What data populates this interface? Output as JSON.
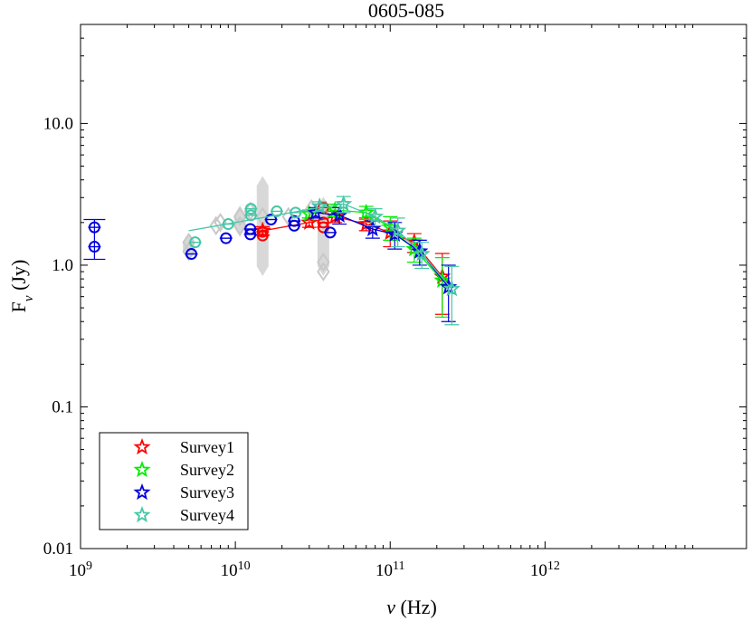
{
  "chart_data": {
    "type": "scatter",
    "title": "0605-085",
    "xlabel": "ν (Hz)",
    "ylabel": "F_ν (Jy)",
    "xscale": "log",
    "yscale": "log",
    "xlim": [
      1000000000,
      20000000000000
    ],
    "ylim": [
      0.01,
      50
    ],
    "x_ticks": [
      {
        "value": 1000000000,
        "mantissa": "10",
        "exp": "9"
      },
      {
        "value": 10000000000,
        "mantissa": "10",
        "exp": "10"
      },
      {
        "value": 100000000000,
        "mantissa": "10",
        "exp": "11"
      },
      {
        "value": 1000000000000,
        "mantissa": "10",
        "exp": "12"
      }
    ],
    "y_ticks": [
      {
        "value": 0.01,
        "label": "0.01"
      },
      {
        "value": 0.1,
        "label": "0.1"
      },
      {
        "value": 1,
        "label": "1.0"
      },
      {
        "value": 10,
        "label": "10.0"
      }
    ],
    "legend_position": "bottom-left",
    "grey_history": {
      "color": "#c8c8c8",
      "points": [
        {
          "x": 5000000000.0,
          "y": 1.25
        },
        {
          "x": 5000000000.0,
          "y": 1.45
        },
        {
          "x": 7500000000.0,
          "y": 1.9
        },
        {
          "x": 8000000000.0,
          "y": 2.0
        },
        {
          "x": 10700000000.0,
          "y": 2.2
        },
        {
          "x": 10700000000.0,
          "y": 1.9
        },
        {
          "x": 12500000000.0,
          "y": 2.4
        },
        {
          "x": 15000000000.0,
          "y": 2.2
        },
        {
          "x": 22000000000.0,
          "y": 2.2
        },
        {
          "x": 31000000000.0,
          "y": 2.5
        },
        {
          "x": 37000000000.0,
          "y": 2.3
        },
        {
          "x": 37000000000.0,
          "y": 1.05
        },
        {
          "x": 37000000000.0,
          "y": 0.9
        }
      ],
      "bars": [
        {
          "x": 5000000000.0,
          "lo": 1.1,
          "hi": 1.65
        },
        {
          "x": 10700000000.0,
          "lo": 1.6,
          "hi": 2.6
        },
        {
          "x": 15000000000.0,
          "lo": 0.85,
          "hi": 4.2
        },
        {
          "x": 37000000000.0,
          "lo": 0.85,
          "hi": 3.0
        }
      ]
    },
    "series": [
      {
        "name": "Survey1",
        "color": "#ff0000",
        "circles": [
          {
            "x": 15000000000.0,
            "y": 1.62
          },
          {
            "x": 15000000000.0,
            "y": 1.72
          },
          {
            "x": 37000000000.0,
            "y": 2.55
          },
          {
            "x": 37000000000.0,
            "y": 2.0
          },
          {
            "x": 37000000000.0,
            "y": 1.85
          }
        ],
        "stars": [
          {
            "x": 15000000000.0,
            "y": 1.75,
            "err": 0.12
          },
          {
            "x": 30000000000.0,
            "y": 2.0,
            "err": 0.15
          },
          {
            "x": 44000000000.0,
            "y": 2.2,
            "err": 0.2
          },
          {
            "x": 70000000000.0,
            "y": 1.95,
            "err": 0.2
          },
          {
            "x": 100000000000.0,
            "y": 1.7,
            "err": 0.35
          },
          {
            "x": 143000000000.0,
            "y": 1.45,
            "err": 0.22
          },
          {
            "x": 217000000000.0,
            "y": 0.83,
            "err": 0.38
          }
        ]
      },
      {
        "name": "Survey2",
        "color": "#00ee00",
        "circles": [],
        "stars": [
          {
            "x": 30000000000.0,
            "y": 2.3,
            "err": 0.15
          },
          {
            "x": 44000000000.0,
            "y": 2.45,
            "err": 0.25
          },
          {
            "x": 70000000000.0,
            "y": 2.35,
            "err": 0.25
          },
          {
            "x": 100000000000.0,
            "y": 1.85,
            "err": 0.35
          },
          {
            "x": 143000000000.0,
            "y": 1.3,
            "err": 0.25
          },
          {
            "x": 217000000000.0,
            "y": 0.78,
            "err": 0.35
          }
        ]
      },
      {
        "name": "Survey3",
        "color": "#0000dd",
        "circles": [
          {
            "x": 1230000000.0,
            "y": 1.85
          },
          {
            "x": 1230000000.0,
            "y": 1.35
          },
          {
            "x": 5200000000.0,
            "y": 1.2
          },
          {
            "x": 8700000000.0,
            "y": 1.55
          },
          {
            "x": 12500000000.0,
            "y": 1.65
          },
          {
            "x": 12500000000.0,
            "y": 1.8
          },
          {
            "x": 17000000000.0,
            "y": 2.1
          },
          {
            "x": 24000000000.0,
            "y": 1.9
          },
          {
            "x": 24000000000.0,
            "y": 2.05
          },
          {
            "x": 41000000000.0,
            "y": 1.7
          }
        ],
        "circle_errs": [
          {
            "x": 1230000000.0,
            "lo": 1.1,
            "hi": 2.1
          }
        ],
        "stars": [
          {
            "x": 33000000000.0,
            "y": 2.35,
            "err": 0.2
          },
          {
            "x": 47000000000.0,
            "y": 2.25,
            "err": 0.3
          },
          {
            "x": 77000000000.0,
            "y": 1.8,
            "err": 0.25
          },
          {
            "x": 107000000000.0,
            "y": 1.65,
            "err": 0.35
          },
          {
            "x": 155000000000.0,
            "y": 1.25,
            "err": 0.25
          },
          {
            "x": 238000000000.0,
            "y": 0.7,
            "err": 0.3
          }
        ]
      },
      {
        "name": "Survey4",
        "color": "#45c7a6",
        "circles": [
          {
            "x": 5500000000.0,
            "y": 1.45
          },
          {
            "x": 9000000000.0,
            "y": 1.95
          },
          {
            "x": 12600000000.0,
            "y": 2.25
          },
          {
            "x": 12600000000.0,
            "y": 2.5
          },
          {
            "x": 18500000000.0,
            "y": 2.4
          },
          {
            "x": 24500000000.0,
            "y": 2.35
          }
        ],
        "stars": [
          {
            "x": 35000000000.0,
            "y": 2.6,
            "err": 0.2
          },
          {
            "x": 50000000000.0,
            "y": 2.7,
            "err": 0.35
          },
          {
            "x": 80000000000.0,
            "y": 2.2,
            "err": 0.3
          },
          {
            "x": 112000000000.0,
            "y": 1.75,
            "err": 0.4
          },
          {
            "x": 160000000000.0,
            "y": 1.2,
            "err": 0.25
          },
          {
            "x": 250000000000.0,
            "y": 0.68,
            "err": 0.3
          }
        ],
        "line": [
          {
            "x": 5000000000.0,
            "y": 1.75
          },
          {
            "x": 35000000000.0,
            "y": 2.55
          },
          {
            "x": 50000000000.0,
            "y": 2.7
          },
          {
            "x": 80000000000.0,
            "y": 2.2
          },
          {
            "x": 112000000000.0,
            "y": 1.75
          },
          {
            "x": 160000000000.0,
            "y": 1.2
          },
          {
            "x": 250000000000.0,
            "y": 0.68
          }
        ]
      }
    ]
  }
}
